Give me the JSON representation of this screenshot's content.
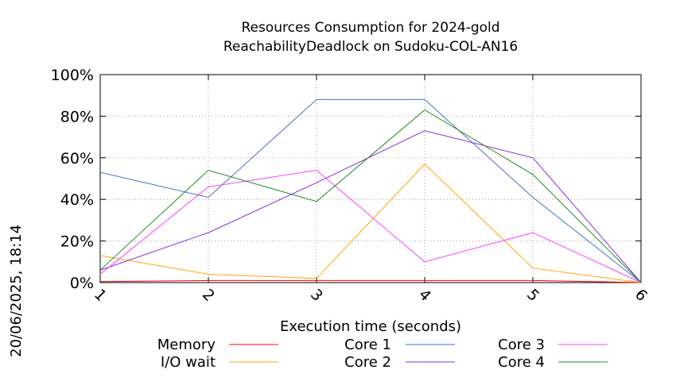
{
  "chart_data": {
    "type": "line",
    "title_line1": "Resources Consumption for 2024-gold",
    "title_line2": "ReachabilityDeadlock on Sudoku-COL-AN16",
    "xlabel": "Execution time (seconds)",
    "ylabel": "",
    "x": [
      1,
      2,
      3,
      4,
      5,
      6
    ],
    "x_tick_labels": [
      "1",
      "2",
      "3",
      "4",
      "5",
      "6"
    ],
    "y_tick_labels": [
      "0%",
      "20%",
      "40%",
      "60%",
      "80%",
      "100%"
    ],
    "xlim": [
      1,
      6
    ],
    "ylim": [
      0,
      100
    ],
    "grid": true,
    "legend_position": "bottom",
    "series": [
      {
        "name": "Memory",
        "color": "#ff0000",
        "values": [
          0.5,
          1,
          1,
          1,
          1,
          0
        ]
      },
      {
        "name": "I/O wait",
        "color": "#ffa500",
        "values": [
          13,
          4,
          2,
          57,
          7,
          0
        ]
      },
      {
        "name": "Core 1",
        "color": "#4472c4",
        "values": [
          53,
          41,
          88,
          88,
          41,
          0
        ]
      },
      {
        "name": "Core 2",
        "color": "#8a2be2",
        "values": [
          6,
          24,
          48,
          73,
          60,
          0
        ]
      },
      {
        "name": "Core 3",
        "color": "#ff40ff",
        "values": [
          4,
          46,
          54,
          10,
          24,
          0
        ]
      },
      {
        "name": "Core 4",
        "color": "#228b22",
        "values": [
          6,
          54,
          39,
          83,
          52,
          0
        ]
      }
    ]
  },
  "timestamp": "20/06/2025, 18:14"
}
